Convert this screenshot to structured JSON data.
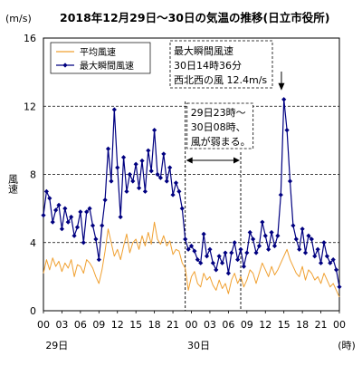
{
  "chart_data": {
    "type": "line",
    "title": "2018年12月29日～30日の気温の推移(日立市役所)",
    "unit_label": "(m/s)",
    "ylabel": "風速",
    "ylim": [
      0,
      16
    ],
    "yticks": [
      "0",
      "4",
      "8",
      "12",
      "16"
    ],
    "grid": "horizontal dashed",
    "xlim": [
      0,
      48
    ],
    "xticks": [
      {
        "x": 0,
        "label": "00"
      },
      {
        "x": 3,
        "label": "03"
      },
      {
        "x": 6,
        "label": "06"
      },
      {
        "x": 9,
        "label": "09"
      },
      {
        "x": 12,
        "label": "12"
      },
      {
        "x": 15,
        "label": "15"
      },
      {
        "x": 18,
        "label": "18"
      },
      {
        "x": 21,
        "label": "21"
      },
      {
        "x": 24,
        "label": "00"
      },
      {
        "x": 27,
        "label": "03"
      },
      {
        "x": 30,
        "label": "06"
      },
      {
        "x": 33,
        "label": "09"
      },
      {
        "x": 36,
        "label": "12"
      },
      {
        "x": 39,
        "label": "15"
      },
      {
        "x": 42,
        "label": "18"
      },
      {
        "x": 45,
        "label": "21"
      },
      {
        "x": 48,
        "label": "00"
      }
    ],
    "day_labels": [
      {
        "x": 1,
        "label": "29日"
      },
      {
        "x": 24,
        "label": "30日"
      }
    ],
    "hour_unit": "(時)",
    "legend_position": "top-left",
    "series": [
      {
        "name": "平均風速",
        "color": "#f0a030",
        "marker": "none",
        "x": [
          0,
          0.5,
          1,
          1.5,
          2,
          2.5,
          3,
          3.5,
          4,
          4.5,
          5,
          5.5,
          6,
          6.5,
          7,
          7.5,
          8,
          8.5,
          9,
          9.5,
          10,
          10.5,
          11,
          11.5,
          12,
          12.5,
          13,
          13.5,
          14,
          14.5,
          15,
          15.5,
          16,
          16.5,
          17,
          17.5,
          18,
          18.5,
          19,
          19.5,
          20,
          20.5,
          21,
          21.5,
          22,
          22.5,
          23,
          23.5,
          24,
          24.5,
          25,
          25.5,
          26,
          26.5,
          27,
          27.5,
          28,
          28.5,
          29,
          29.5,
          30,
          30.5,
          31,
          31.5,
          32,
          32.5,
          33,
          33.5,
          34,
          34.5,
          35,
          35.5,
          36,
          36.5,
          37,
          37.5,
          38,
          38.5,
          39,
          39.5,
          40,
          40.5,
          41,
          41.5,
          42,
          42.5,
          43,
          43.5,
          44,
          44.5,
          45,
          45.5,
          46,
          46.5,
          47,
          47.5,
          48
        ],
        "values": [
          2.2,
          3.0,
          2.4,
          3.1,
          2.6,
          2.9,
          2.3,
          2.8,
          2.5,
          3.0,
          2.0,
          2.7,
          2.6,
          2.2,
          3.0,
          2.8,
          2.5,
          2.0,
          1.6,
          2.4,
          3.5,
          4.8,
          4.0,
          3.2,
          3.6,
          3.0,
          3.8,
          4.5,
          3.4,
          4.0,
          4.2,
          3.6,
          4.4,
          3.8,
          4.6,
          3.9,
          5.2,
          4.2,
          3.9,
          4.4,
          3.8,
          4.1,
          3.3,
          3.6,
          3.5,
          2.8,
          2.5,
          1.2,
          2.0,
          2.3,
          1.6,
          1.4,
          2.2,
          1.8,
          2.0,
          1.5,
          1.2,
          1.8,
          1.3,
          1.6,
          1.0,
          1.8,
          2.2,
          1.6,
          2.0,
          1.4,
          1.8,
          2.4,
          2.2,
          1.6,
          2.2,
          2.8,
          2.4,
          2.0,
          2.6,
          2.1,
          2.4,
          2.8,
          3.2,
          3.6,
          3.0,
          2.6,
          2.2,
          2.0,
          2.6,
          1.8,
          2.4,
          2.2,
          1.8,
          2.0,
          1.6,
          2.2,
          1.8,
          1.4,
          1.6,
          1.2,
          0.8
        ]
      },
      {
        "name": "最大瞬間風速",
        "color": "#000080",
        "marker": "diamond",
        "x": [
          0,
          0.5,
          1,
          1.5,
          2,
          2.5,
          3,
          3.5,
          4,
          4.5,
          5,
          5.5,
          6,
          6.5,
          7,
          7.5,
          8,
          8.5,
          9,
          9.5,
          10,
          10.5,
          11,
          11.5,
          12,
          12.5,
          13,
          13.5,
          14,
          14.5,
          15,
          15.5,
          16,
          16.5,
          17,
          17.5,
          18,
          18.5,
          19,
          19.5,
          20,
          20.5,
          21,
          21.5,
          22,
          22.5,
          23,
          23.5,
          24,
          24.5,
          25,
          25.5,
          26,
          26.5,
          27,
          27.5,
          28,
          28.5,
          29,
          29.5,
          30,
          30.5,
          31,
          31.5,
          32,
          32.5,
          33,
          33.5,
          34,
          34.5,
          35,
          35.5,
          36,
          36.5,
          37,
          37.5,
          38,
          38.5,
          39,
          39.5,
          40,
          40.5,
          41,
          41.5,
          42,
          42.5,
          43,
          43.5,
          44,
          44.5,
          45,
          45.5,
          46,
          46.5,
          47,
          47.5,
          48
        ],
        "values": [
          5.6,
          7.0,
          6.6,
          5.2,
          5.9,
          6.2,
          4.8,
          6.0,
          5.2,
          5.5,
          4.4,
          4.9,
          5.8,
          4.0,
          5.8,
          6.0,
          5.0,
          4.2,
          3.0,
          5.0,
          6.5,
          9.5,
          7.6,
          11.8,
          8.4,
          5.5,
          9.0,
          7.0,
          8.0,
          7.6,
          8.6,
          7.2,
          8.8,
          7.0,
          9.4,
          8.2,
          10.6,
          8.0,
          7.8,
          9.2,
          7.6,
          8.4,
          6.8,
          7.5,
          7.0,
          6.0,
          4.2,
          3.6,
          3.8,
          3.5,
          3.0,
          2.8,
          4.5,
          3.2,
          3.6,
          2.8,
          2.4,
          3.2,
          2.8,
          3.4,
          2.2,
          3.4,
          4.0,
          3.0,
          3.6,
          2.6,
          3.4,
          4.6,
          4.2,
          3.4,
          3.8,
          5.2,
          4.4,
          3.6,
          4.6,
          3.8,
          4.4,
          6.8,
          12.4,
          10.6,
          7.6,
          5.0,
          4.2,
          3.6,
          4.8,
          3.4,
          4.4,
          4.2,
          3.2,
          3.6,
          2.8,
          4.0,
          3.2,
          2.8,
          3.0,
          2.4,
          1.4
        ]
      }
    ],
    "annotations": [
      {
        "id": "peak",
        "lines": [
          "最大瞬間風速",
          "30日14時36分",
          "西北西の風 12.4m/s"
        ],
        "arrow_to": {
          "x": 38.6,
          "y": 12.4
        }
      },
      {
        "id": "calm",
        "lines": [
          "29日23時～",
          "30日08時、",
          "風が弱まる。"
        ],
        "range": {
          "x0": 23,
          "x1": 32
        }
      }
    ]
  }
}
